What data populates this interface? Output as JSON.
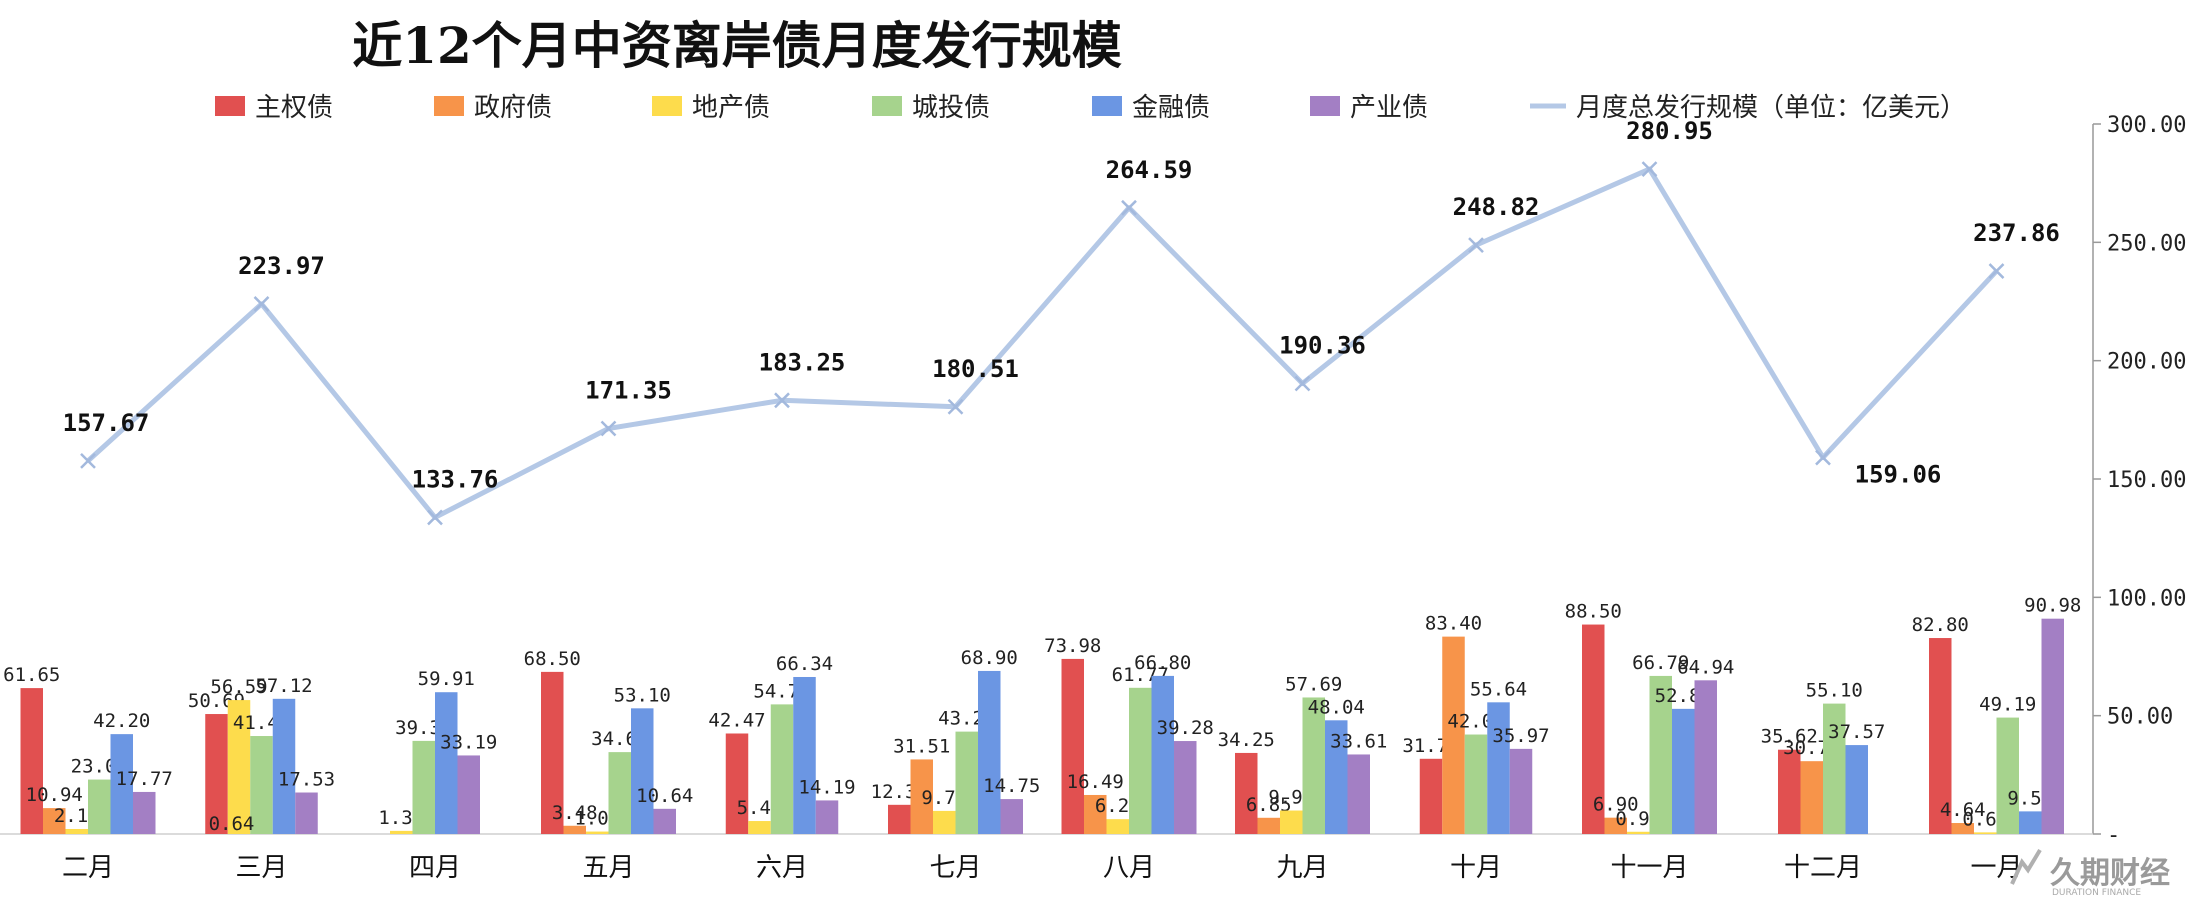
{
  "chart_data": {
    "type": "bar",
    "title": "近12个月中资离岸债月度发行规模",
    "categories": [
      "二月",
      "三月",
      "四月",
      "五月",
      "六月",
      "七月",
      "八月",
      "九月",
      "十月",
      "十一月",
      "十二月",
      "一月"
    ],
    "series": [
      {
        "name": "主权债",
        "color": "#e15050",
        "values": [
          61.65,
          50.69,
          null,
          68.5,
          42.47,
          12.33,
          73.98,
          34.25,
          31.78,
          88.5,
          35.62,
          82.8
        ]
      },
      {
        "name": "政府债",
        "color": "#f7944a",
        "values": [
          10.94,
          null,
          null,
          3.48,
          null,
          31.51,
          16.49,
          6.85,
          83.4,
          6.9,
          30.77,
          4.64
        ]
      },
      {
        "name": "地产债",
        "color": "#fddc4c",
        "values": [
          2.11,
          56.59,
          1.32,
          1.03,
          5.48,
          9.76,
          6.27,
          9.92,
          null,
          0.94,
          null,
          0.69
        ]
      },
      {
        "name": "城投债",
        "color": "#a6d38d",
        "values": [
          23.0,
          41.4,
          39.34,
          34.6,
          54.77,
          43.26,
          61.77,
          57.69,
          42.03,
          66.79,
          55.1,
          49.19
        ]
      },
      {
        "name": "金融债",
        "color": "#6b96e3",
        "values": [
          42.2,
          57.12,
          59.91,
          53.1,
          66.34,
          68.9,
          66.8,
          48.04,
          55.64,
          52.88,
          37.57,
          9.56
        ]
      },
      {
        "name": "产业债",
        "color": "#a37fc4",
        "values": [
          17.77,
          17.53,
          33.19,
          10.64,
          14.19,
          14.75,
          39.28,
          33.61,
          35.97,
          64.94,
          null,
          90.98
        ]
      }
    ],
    "extra_labels": [
      {
        "category_index": 1,
        "text": "0.64"
      }
    ],
    "line_series": {
      "name": "月度总发行规模（单位：亿美元）",
      "color": "#b4c8e6",
      "values": [
        157.67,
        223.97,
        133.76,
        171.35,
        183.25,
        180.51,
        264.59,
        190.36,
        248.82,
        280.95,
        159.06,
        237.86
      ]
    },
    "ylim": [
      0,
      300
    ],
    "yticks": [
      "300.00",
      "250.00",
      "200.00",
      "150.00",
      "100.00",
      "50.00",
      "-"
    ],
    "ytick_values": [
      300,
      250,
      200,
      150,
      100,
      50,
      0
    ],
    "axis_position": "right",
    "legend_position": "top",
    "xlabel": "",
    "ylabel": ""
  },
  "watermark": {
    "main": "久期财经",
    "sub": "DURATION FINANCE"
  }
}
